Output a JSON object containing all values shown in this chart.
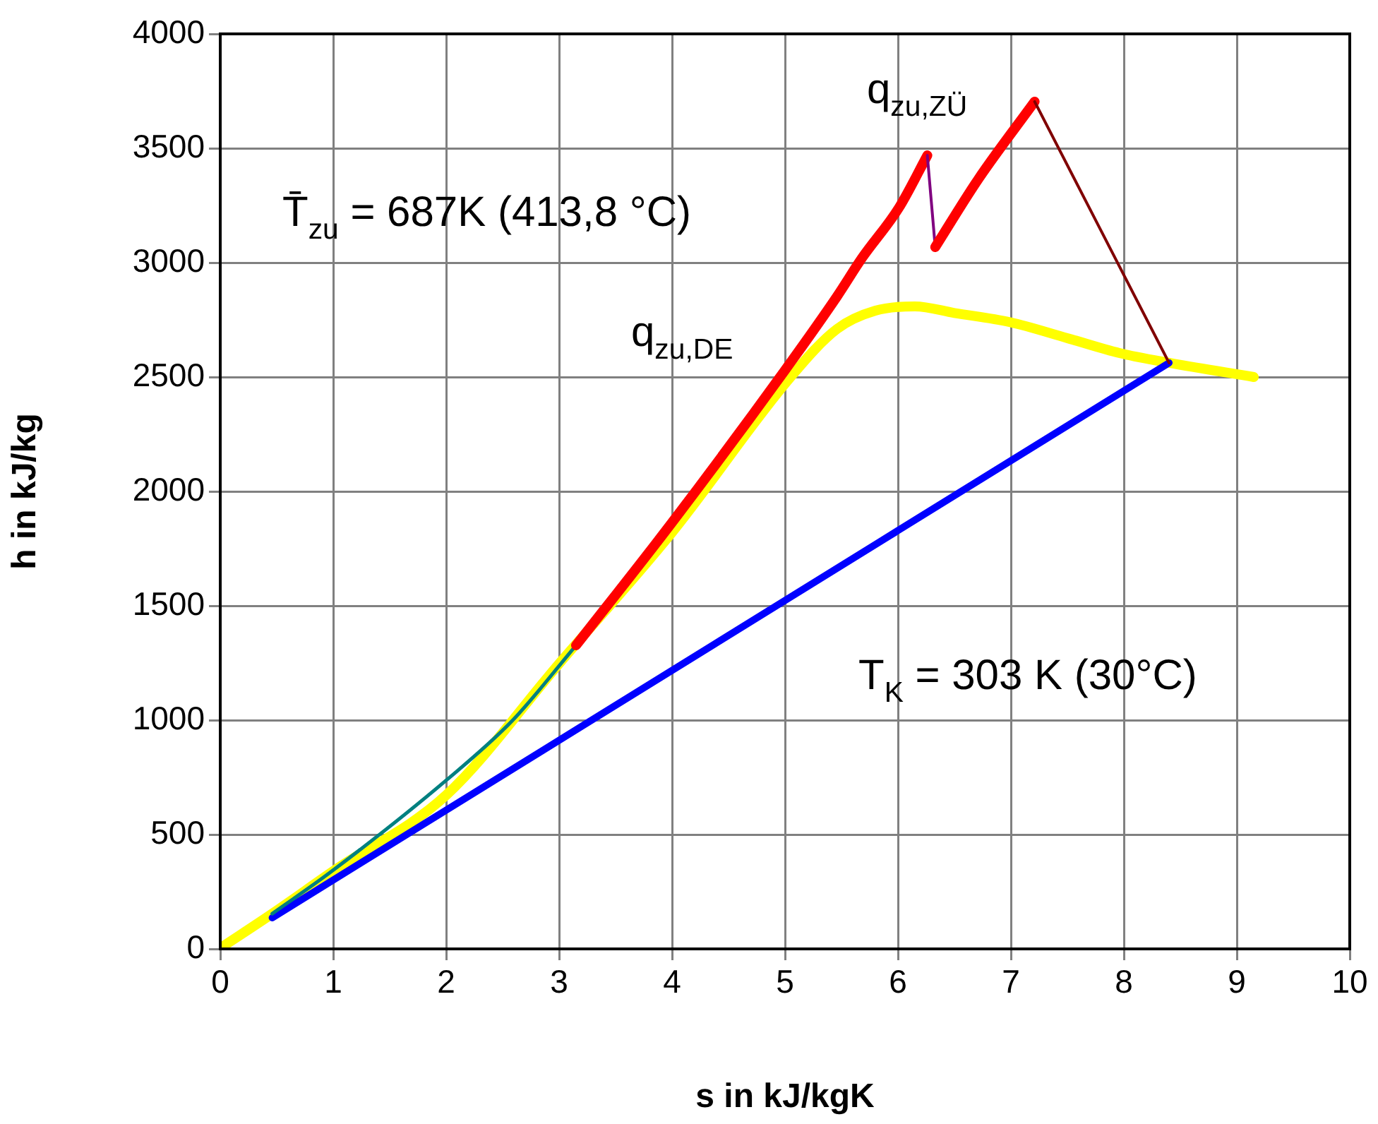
{
  "chart_data": {
    "type": "line",
    "xlabel": "s in kJ/kgK",
    "ylabel": "h in kJ/kg",
    "xlim": [
      0,
      10
    ],
    "xticks": [
      0,
      1,
      2,
      3,
      4,
      5,
      6,
      7,
      8,
      9,
      10
    ],
    "ylim": [
      0,
      4000
    ],
    "yticks": [
      0,
      500,
      1000,
      1500,
      2000,
      2500,
      3000,
      3500,
      4000
    ],
    "grid": true,
    "legend": false,
    "marker": "none",
    "line_style": "solid",
    "series": [
      {
        "color": "#ffff00",
        "x": [
          0.02,
          0.46,
          1.0,
          2.0,
          3.0,
          4.0,
          5.05,
          5.46,
          5.8,
          6.15,
          6.5,
          6.99,
          7.5,
          7.96,
          8.4,
          9.15
        ],
        "values": [
          10,
          154,
          340,
          672,
          1247,
          1821,
          2500,
          2710,
          2790,
          2809,
          2780,
          2740,
          2670,
          2605,
          2562,
          2500
        ]
      },
      {
        "color": "#0000ff",
        "x": [
          0.46,
          8.4
        ],
        "values": [
          136,
          2562
        ]
      },
      {
        "color": "#008080",
        "x": [
          0.46,
          0.97,
          2.01,
          2.59,
          3.15
        ],
        "values": [
          154,
          333,
          741,
          1000,
          1327
        ]
      },
      {
        "color": "#ff0000",
        "x": [
          3.15,
          4.0,
          5.0,
          5.46,
          5.68,
          6.01,
          6.26
        ],
        "values": [
          1327,
          1864,
          2530,
          2852,
          3019,
          3241,
          3469
        ]
      },
      {
        "color": "#800080",
        "x": [
          6.26,
          6.33
        ],
        "values": [
          3469,
          3068
        ]
      },
      {
        "color": "#ff0000",
        "x": [
          6.33,
          6.71,
          7.21
        ],
        "values": [
          3068,
          3364,
          3704
        ]
      },
      {
        "color": "#800000",
        "x": [
          7.21,
          8.4
        ],
        "values": [
          3704,
          2562
        ]
      }
    ],
    "annotations": [
      "T̄$_{zu}$ = 687K (413,8 °C)",
      "q$_{zu,DE}$",
      "q$_{zu,ZÜ}$",
      "T$_{K}$ = 303 K (30°C)"
    ]
  }
}
